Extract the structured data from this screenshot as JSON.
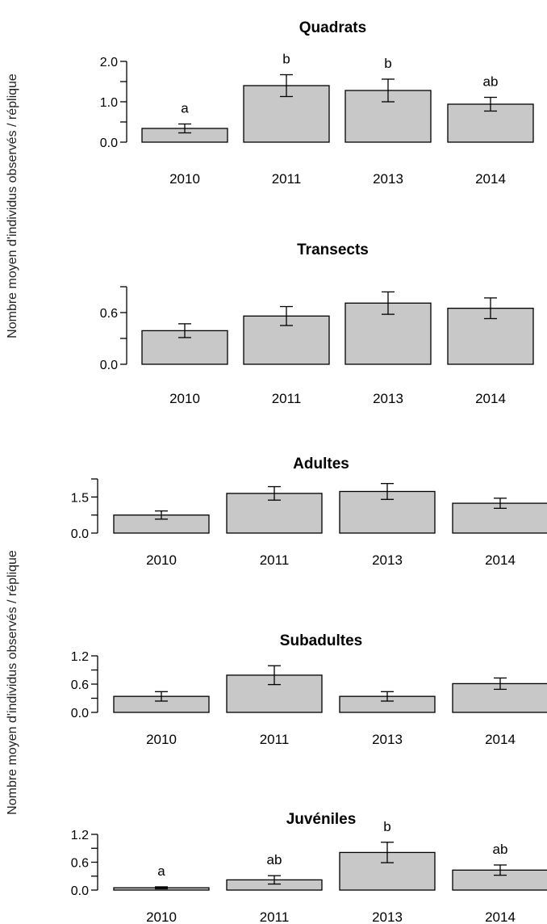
{
  "y_axis_labels": [
    "Nombre moyen d'individus observés / réplique",
    "Nombre moyen d'individus observés / réplique"
  ],
  "chart_data": [
    {
      "type": "bar",
      "title": "Quadrats",
      "categories": [
        "2010",
        "2011",
        "2013",
        "2014"
      ],
      "values": [
        0.34,
        1.4,
        1.28,
        0.94
      ],
      "errors": [
        0.11,
        0.27,
        0.28,
        0.17
      ],
      "annotations": [
        "a",
        "b",
        "b",
        "ab"
      ],
      "ylim": [
        0,
        2.0
      ],
      "yticks": [
        0,
        0.5,
        1.0,
        1.5,
        2.0
      ],
      "ytick_labels": [
        "0.0",
        "",
        "1.0",
        "",
        "2.0"
      ],
      "grid": false,
      "bar_color": "#c8c8c8"
    },
    {
      "type": "bar",
      "title": "Transects",
      "categories": [
        "2010",
        "2011",
        "2013",
        "2014"
      ],
      "values": [
        0.39,
        0.56,
        0.71,
        0.65
      ],
      "errors": [
        0.08,
        0.11,
        0.13,
        0.12
      ],
      "annotations": [
        "",
        "",
        "",
        ""
      ],
      "ylim": [
        0,
        0.9
      ],
      "yticks": [
        0,
        0.3,
        0.6,
        0.9
      ],
      "ytick_labels": [
        "0.0",
        "",
        "0.6",
        ""
      ],
      "grid": false,
      "bar_color": "#c8c8c8"
    },
    {
      "type": "bar",
      "title": "Adultes",
      "categories": [
        "2010",
        "2011",
        "2013",
        "2014"
      ],
      "values": [
        0.75,
        1.65,
        1.73,
        1.24
      ],
      "errors": [
        0.17,
        0.28,
        0.33,
        0.21
      ],
      "annotations": [
        "",
        "",
        "",
        ""
      ],
      "ylim": [
        0,
        2.25
      ],
      "yticks": [
        0,
        0.75,
        1.5,
        2.25
      ],
      "ytick_labels": [
        "0.0",
        "",
        "1.5",
        ""
      ],
      "grid": false,
      "bar_color": "#c8c8c8"
    },
    {
      "type": "bar",
      "title": "Subadultes",
      "categories": [
        "2010",
        "2011",
        "2013",
        "2014"
      ],
      "values": [
        0.34,
        0.79,
        0.34,
        0.61
      ],
      "errors": [
        0.1,
        0.2,
        0.1,
        0.12
      ],
      "annotations": [
        "",
        "",
        "",
        ""
      ],
      "ylim": [
        0,
        1.2
      ],
      "yticks": [
        0,
        0.3,
        0.6,
        0.9,
        1.2
      ],
      "ytick_labels": [
        "0.0",
        "",
        "0.6",
        "",
        "1.2"
      ],
      "grid": false,
      "bar_color": "#c8c8c8"
    },
    {
      "type": "bar",
      "title": "Juvéniles",
      "categories": [
        "2010",
        "2011",
        "2013",
        "2014"
      ],
      "values": [
        0.05,
        0.22,
        0.81,
        0.43
      ],
      "errors": [
        0.02,
        0.09,
        0.22,
        0.11
      ],
      "annotations": [
        "a",
        "ab",
        "b",
        "ab"
      ],
      "ylim": [
        0,
        1.2
      ],
      "yticks": [
        0,
        0.3,
        0.6,
        0.9,
        1.2
      ],
      "ytick_labels": [
        "0.0",
        "",
        "0.6",
        "",
        "1.2"
      ],
      "grid": false,
      "bar_color": "#c8c8c8"
    }
  ]
}
